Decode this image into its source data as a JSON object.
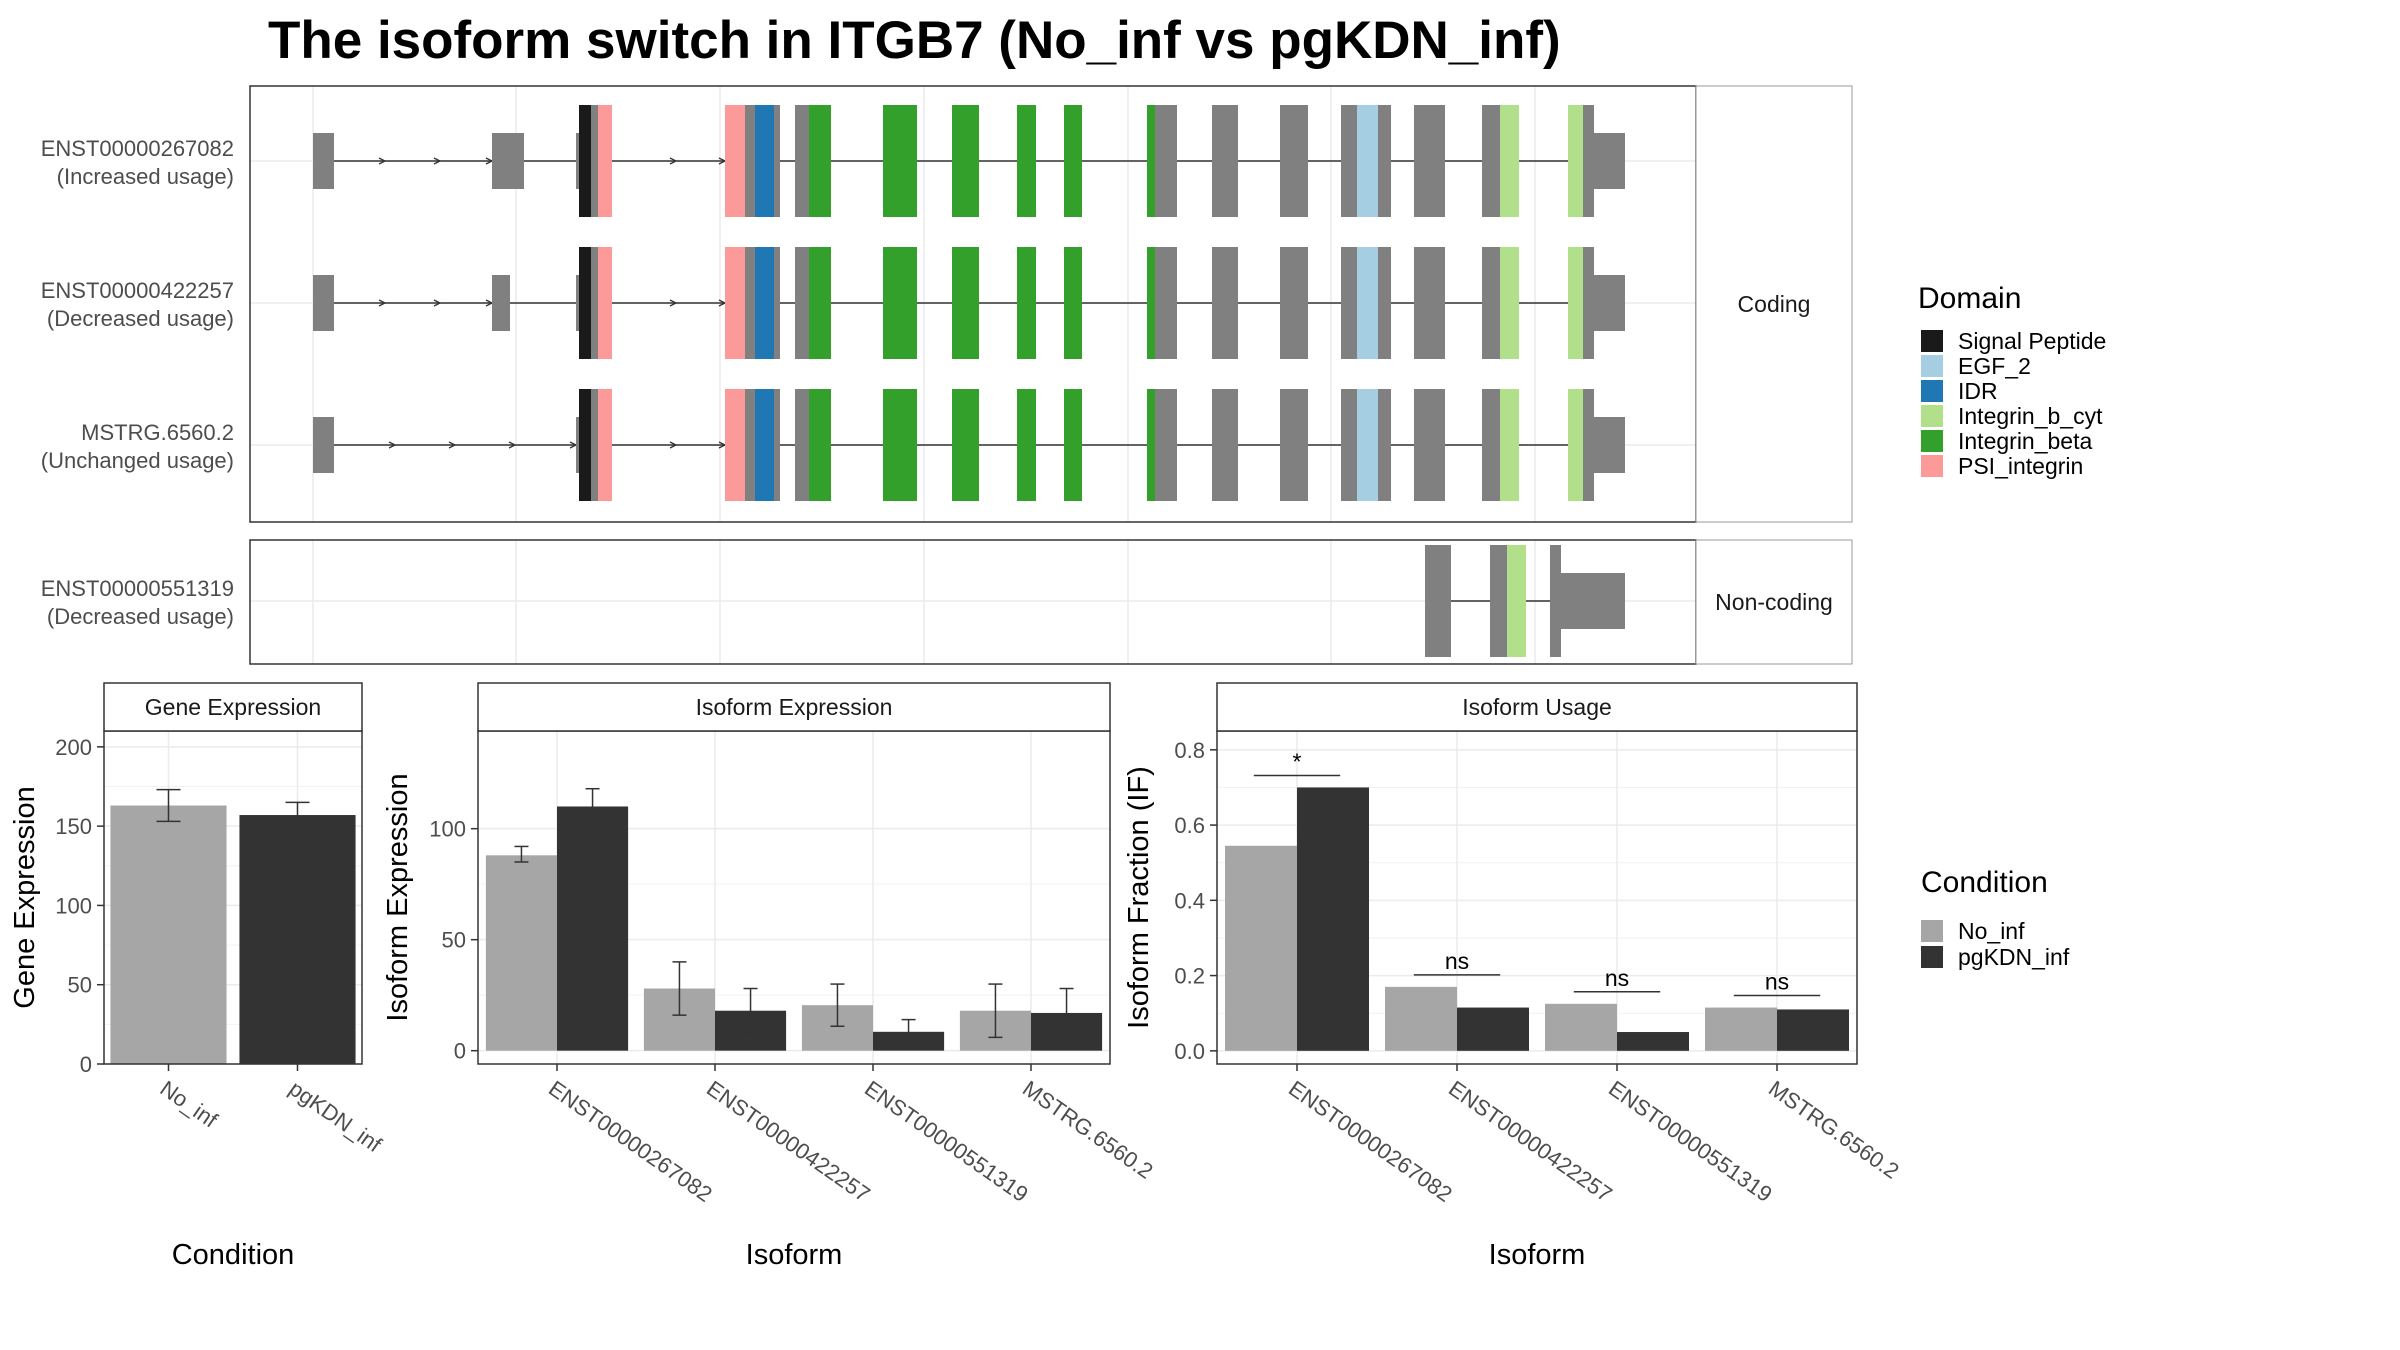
{
  "title": "The isoform switch in ITGB7 (No_inf vs pgKDN_inf)",
  "colors": {
    "No_inf": "#a6a6a6",
    "pgKDN_inf": "#333333",
    "exon": "#808080",
    "Signal Peptide": "#1a1a1a",
    "EGF_2": "#a6cee3",
    "IDR": "#1f78b4",
    "Integrin_b_cyt": "#b2df8a",
    "Integrin_beta": "#33a02c",
    "PSI_integrin": "#fb9a99"
  },
  "structure": {
    "facet_coding": "Coding",
    "facet_noncoding": "Non-coding",
    "isoforms": [
      {
        "id": "ENST00000267082",
        "usage": "(Increased usage)",
        "facet": "coding"
      },
      {
        "id": "ENST00000422257",
        "usage": "(Decreased usage)",
        "facet": "coding"
      },
      {
        "id": "MSTRG.6560.2",
        "usage": "(Unchanged usage)",
        "facet": "coding"
      },
      {
        "id": "ENST00000551319",
        "usage": "(Decreased usage)",
        "facet": "noncoding"
      }
    ]
  },
  "legends": {
    "domain_title": "Domain",
    "domains": [
      "Signal Peptide",
      "EGF_2",
      "IDR",
      "Integrin_b_cyt",
      "Integrin_beta",
      "PSI_integrin"
    ],
    "condition_title": "Condition",
    "conditions": [
      "No_inf",
      "pgKDN_inf"
    ]
  },
  "chart_data": [
    {
      "type": "bar",
      "title": "Gene Expression",
      "xlabel": "Condition",
      "ylabel": "Gene Expression",
      "categories": [
        "No_inf",
        "pgKDN_inf"
      ],
      "values": [
        163,
        157
      ],
      "error": [
        [
          153,
          173
        ],
        [
          150,
          165
        ]
      ],
      "ylim": [
        0,
        210
      ],
      "yticks": [
        0,
        50,
        100,
        150,
        200
      ]
    },
    {
      "type": "bar",
      "title": "Isoform Expression",
      "xlabel": "Isoform",
      "ylabel": "Isoform Expression",
      "categories": [
        "ENST00000267082",
        "ENST00000422257",
        "ENST00000551319",
        "MSTRG.6560.2"
      ],
      "series": [
        {
          "name": "No_inf",
          "values": [
            88,
            28,
            20.5,
            18
          ],
          "error": [
            [
              85,
              92
            ],
            [
              16,
              40
            ],
            [
              11,
              30
            ],
            [
              6,
              30
            ]
          ]
        },
        {
          "name": "pgKDN_inf",
          "values": [
            110,
            18,
            8.5,
            17
          ],
          "error": [
            [
              102,
              118
            ],
            [
              8,
              28
            ],
            [
              3,
              14
            ],
            [
              5,
              28
            ]
          ]
        }
      ],
      "ylim": [
        -6,
        144
      ],
      "yticks": [
        0,
        50,
        100
      ]
    },
    {
      "type": "bar",
      "title": "Isoform Usage",
      "xlabel": "Isoform",
      "ylabel": "Isoform Fraction (IF)",
      "categories": [
        "ENST00000267082",
        "ENST00000422257",
        "ENST00000551319",
        "MSTRG.6560.2"
      ],
      "series": [
        {
          "name": "No_inf",
          "values": [
            0.545,
            0.17,
            0.125,
            0.115
          ]
        },
        {
          "name": "pgKDN_inf",
          "values": [
            0.7,
            0.115,
            0.05,
            0.11
          ]
        }
      ],
      "significance": [
        "*",
        "ns",
        "ns",
        "ns"
      ],
      "ylim": [
        -0.035,
        0.85
      ],
      "yticks": [
        0.0,
        0.2,
        0.4,
        0.6,
        0.8
      ],
      "ytick_labels": [
        "0.0",
        "0.2",
        "0.4",
        "0.6",
        "0.8"
      ]
    }
  ]
}
